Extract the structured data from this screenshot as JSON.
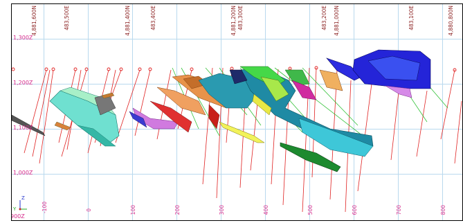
{
  "elevation_labels": [
    "1,300Z",
    "1,200Z",
    "1,100Z",
    "1,000Z",
    "900Z"
  ],
  "coordinate_labels": [
    "4,881,600N",
    "483,500E",
    "4,881,400N",
    "483,400E",
    "4,881,200N",
    "483,300E",
    "483,200E",
    "4,881,000N",
    "483,100E",
    "4,880,800N"
  ],
  "bottom_ticks": [
    "-100",
    "0",
    "100",
    "200",
    "300",
    "400",
    "500",
    "600",
    "700",
    "800"
  ],
  "axis_triad": {
    "z": "Z",
    "y": "Y"
  },
  "colors": {
    "grid": "#b9d9ee",
    "drillhole_red": "#e02020",
    "drillhole_green": "#35c23a",
    "elevation_text": "#d6288a",
    "coordinate_text": "#8a1f1f"
  }
}
